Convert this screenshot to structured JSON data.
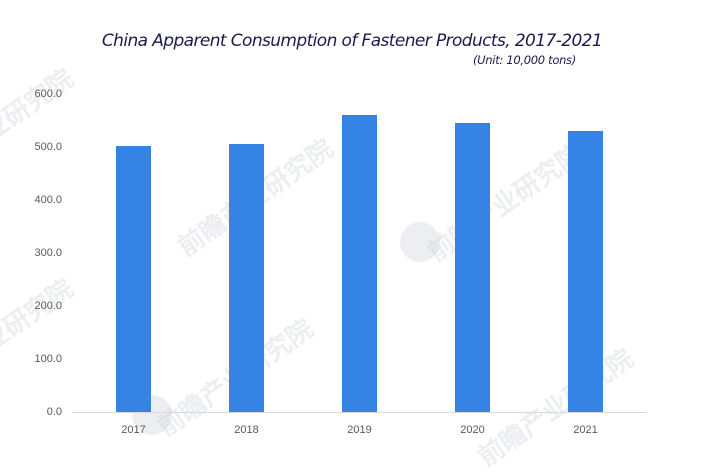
{
  "chart_data": {
    "type": "bar",
    "title": "China Apparent Consumption of Fastener Products, 2017-2021",
    "subtitle": "(Unit: 10,000 tons)",
    "categories": [
      "2017",
      "2018",
      "2019",
      "2020",
      "2021"
    ],
    "values": [
      501,
      505,
      560,
      546,
      530
    ],
    "xlabel": "",
    "ylabel": "10,000 tons",
    "ylim": [
      0,
      600
    ],
    "yticks": [
      "0.0",
      "100.0",
      "200.0",
      "300.0",
      "400.0",
      "500.0",
      "600.0"
    ],
    "grid": false,
    "legend": null,
    "bar_color": "#3683e6"
  },
  "watermark": {
    "text": "前瞻产业研究院"
  }
}
